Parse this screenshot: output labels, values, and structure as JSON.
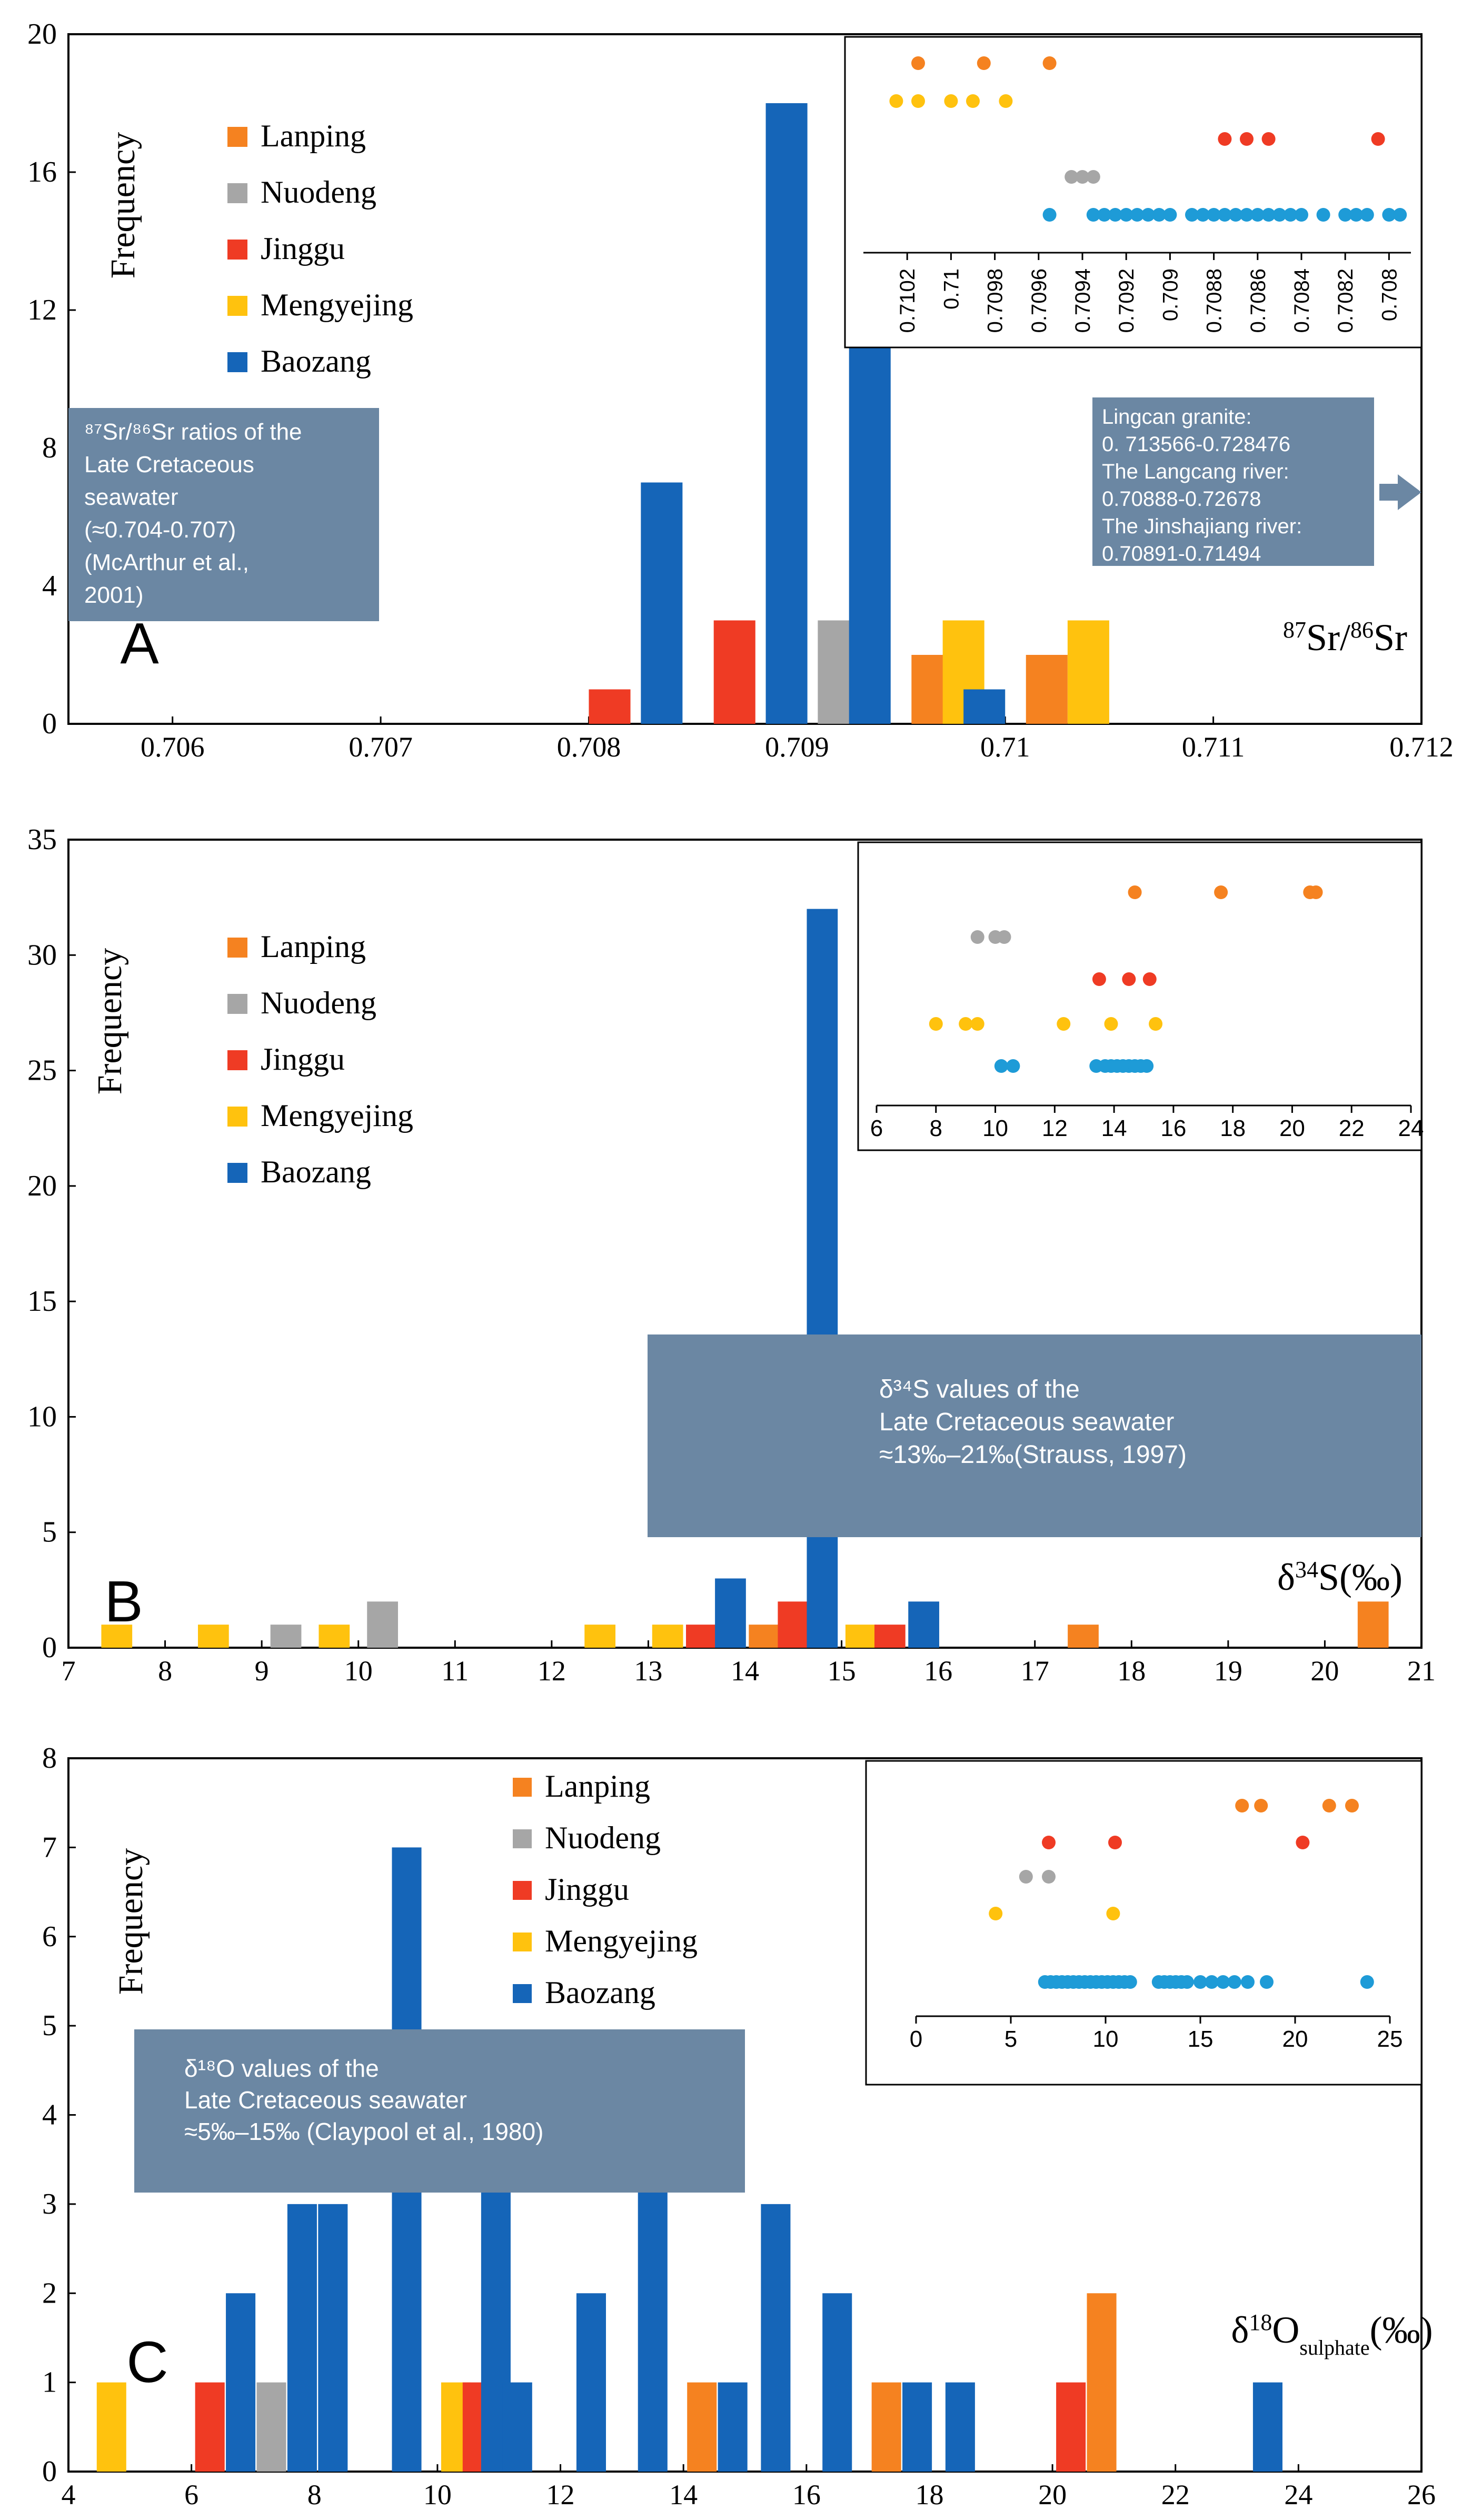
{
  "colors": {
    "Lanping": "#f58220",
    "Nuodeng": "#a6a6a6",
    "Jinggu": "#ef3b24",
    "Mengyejing": "#ffc20e",
    "Baozang": "#1565b8",
    "inset_baozang": "#1e9bd7",
    "callout": "#6b87a3",
    "callout_text": "#ffffff",
    "axis": "#000000"
  },
  "chart_data": [
    {
      "id": "A",
      "type": "bar",
      "panel_label": "A",
      "title": "",
      "ylabel": "Frequency",
      "xlabel_pre": "87",
      "xlabel_mid": "Sr/",
      "xlabel_sup2": "86",
      "xlabel_post": "Sr",
      "xlim": [
        0.7055,
        0.712
      ],
      "ylim": [
        0,
        20
      ],
      "xticks": [
        0.706,
        0.707,
        0.708,
        0.709,
        0.71,
        0.711,
        0.712
      ],
      "xtick_labels": [
        "0.706",
        "0.707",
        "0.708",
        "0.709",
        "0.71",
        "0.711",
        "0.712"
      ],
      "yticks": [
        0,
        4,
        8,
        12,
        16,
        20
      ],
      "bar_width": 0.0002,
      "legend": [
        "Lanping",
        "Nuodeng",
        "Jinggu",
        "Mengyejing",
        "Baozang"
      ],
      "bars": [
        {
          "series": "Jinggu",
          "x": 0.7081,
          "value": 1
        },
        {
          "series": "Baozang",
          "x": 0.70835,
          "value": 7
        },
        {
          "series": "Jinggu",
          "x": 0.7087,
          "value": 3
        },
        {
          "series": "Baozang",
          "x": 0.70895,
          "value": 18
        },
        {
          "series": "Nuodeng",
          "x": 0.7092,
          "value": 3
        },
        {
          "series": "Baozang",
          "x": 0.70935,
          "value": 11
        },
        {
          "series": "Lanping",
          "x": 0.70965,
          "value": 2
        },
        {
          "series": "Mengyejing",
          "x": 0.7098,
          "value": 3
        },
        {
          "series": "Baozang",
          "x": 0.7099,
          "value": 1
        },
        {
          "series": "Lanping",
          "x": 0.7102,
          "value": 2
        },
        {
          "series": "Mengyejing",
          "x": 0.70835,
          "value": 0
        },
        {
          "series": "Mengyejing",
          "x": 0.7104,
          "value": 3
        }
      ],
      "callouts": [
        {
          "lines": [
            "⁸⁷Sr/⁸⁶Sr ratios of the",
            "Late Cretaceous",
            "seawater",
            "(≈0.704-0.707)",
            "(McArthur et al.,",
            "2001)"
          ]
        },
        {
          "lines": [
            "Lingcan granite:",
            "0. 713566-0.728476",
            "The Langcang river:",
            "0.70888-0.72678",
            "The Jinshajiang river:",
            "0.70891-0.71494"
          ]
        }
      ],
      "inset": {
        "reversed": true,
        "xlim": [
          0.7104,
          0.7079
        ],
        "xticks": [
          0.7102,
          0.71,
          0.7098,
          0.7096,
          0.7094,
          0.7092,
          0.709,
          0.7088,
          0.7086,
          0.7084,
          0.7082,
          0.708
        ],
        "xtick_labels": [
          "0.7102",
          "0.71",
          "0.7098",
          "0.7096",
          "0.7094",
          "0.7092",
          "0.709",
          "0.7088",
          "0.7086",
          "0.7084",
          "0.7082",
          "0.708"
        ],
        "rows": [
          {
            "series": "Lanping",
            "x": [
              0.71015,
              0.70985,
              0.70955
            ]
          },
          {
            "series": "Mengyejing",
            "x": [
              0.71025,
              0.71015,
              0.71,
              0.7099,
              0.70975
            ]
          },
          {
            "series": "Jinggu",
            "x": [
              0.70875,
              0.70865,
              0.70855,
              0.70805
            ]
          },
          {
            "series": "Nuodeng",
            "x": [
              0.70945,
              0.7094,
              0.70935
            ]
          },
          {
            "series": "Baozang",
            "x": [
              0.70955,
              0.70935,
              0.7093,
              0.70925,
              0.7092,
              0.70915,
              0.7091,
              0.70905,
              0.709,
              0.70885,
              0.7088,
              0.7087,
              0.70865,
              0.7086,
              0.70855,
              0.7085,
              0.70845,
              0.7084,
              0.7083,
              0.7082,
              0.70815,
              0.7081,
              0.708,
              0.70795,
              0.7089,
              0.70875
            ]
          }
        ]
      }
    },
    {
      "id": "B",
      "type": "bar",
      "panel_label": "B",
      "title": "",
      "ylabel": "Frequency",
      "xlabel_pre": "δ",
      "xlabel_sup": "34",
      "xlabel_post": "S(‰)",
      "xlim": [
        7,
        21
      ],
      "ylim": [
        0,
        35
      ],
      "xticks": [
        7,
        8,
        9,
        10,
        11,
        12,
        13,
        14,
        15,
        16,
        17,
        18,
        19,
        20,
        21
      ],
      "xtick_labels": [
        "7",
        "8",
        "9",
        "10",
        "11",
        "12",
        "13",
        "14",
        "15",
        "16",
        "17",
        "18",
        "19",
        "20",
        "21"
      ],
      "yticks": [
        0,
        5,
        10,
        15,
        20,
        25,
        30,
        35
      ],
      "bar_width": 0.32,
      "legend": [
        "Lanping",
        "Nuodeng",
        "Jinggu",
        "Mengyejing",
        "Baozang"
      ],
      "bars": [
        {
          "series": "Mengyejing",
          "x": 7.5,
          "value": 1
        },
        {
          "series": "Mengyejing",
          "x": 8.5,
          "value": 1
        },
        {
          "series": "Nuodeng",
          "x": 9.25,
          "value": 1
        },
        {
          "series": "Mengyejing",
          "x": 9.75,
          "value": 1
        },
        {
          "series": "Nuodeng",
          "x": 10.25,
          "value": 2
        },
        {
          "series": "Mengyejing",
          "x": 12.5,
          "value": 1
        },
        {
          "series": "Mengyejing",
          "x": 13.2,
          "value": 1
        },
        {
          "series": "Jinggu",
          "x": 13.55,
          "value": 1
        },
        {
          "series": "Baozang",
          "x": 13.85,
          "value": 3
        },
        {
          "series": "Lanping",
          "x": 14.2,
          "value": 1
        },
        {
          "series": "Jinggu",
          "x": 14.5,
          "value": 2
        },
        {
          "series": "Baozang",
          "x": 14.8,
          "value": 32
        },
        {
          "series": "Mengyejing",
          "x": 15.2,
          "value": 1
        },
        {
          "series": "Jinggu",
          "x": 15.5,
          "value": 1
        },
        {
          "series": "Baozang",
          "x": 15.85,
          "value": 2
        },
        {
          "series": "Lanping",
          "x": 17.5,
          "value": 1
        },
        {
          "series": "Lanping",
          "x": 20.5,
          "value": 2
        }
      ],
      "callouts": [
        {
          "lines": [
            "δ³⁴S values of the",
            "Late Cretaceous seawater",
            "≈13‰–21‰(Strauss, 1997)"
          ]
        }
      ],
      "inset": {
        "reversed": false,
        "xlim": [
          6,
          24
        ],
        "xticks": [
          6,
          8,
          10,
          12,
          14,
          16,
          18,
          20,
          22,
          24
        ],
        "xtick_labels": [
          "6",
          "8",
          "10",
          "12",
          "14",
          "16",
          "18",
          "20",
          "22",
          "24"
        ],
        "rows": [
          {
            "series": "Lanping",
            "x": [
              14.7,
              17.6,
              20.6,
              20.8
            ]
          },
          {
            "series": "Nuodeng",
            "x": [
              9.4,
              10.0,
              10.3
            ]
          },
          {
            "series": "Jinggu",
            "x": [
              13.5,
              14.5,
              15.2
            ]
          },
          {
            "series": "Mengyejing",
            "x": [
              8.0,
              9.0,
              9.4,
              12.3,
              13.9,
              15.4
            ]
          },
          {
            "series": "Baozang",
            "x": [
              10.2,
              10.6,
              13.4,
              13.7,
              13.9,
              14.1,
              14.3,
              14.5,
              14.7,
              14.9,
              15.1
            ]
          }
        ]
      }
    },
    {
      "id": "C",
      "type": "bar",
      "panel_label": "C",
      "title": "",
      "ylabel": "Frequency",
      "xlabel_pre": "δ",
      "xlabel_sup": "18",
      "xlabel_mid": "O",
      "xlabel_sub": "sulphate",
      "xlabel_post": "(‰)",
      "xlim": [
        4,
        26
      ],
      "ylim": [
        0,
        8
      ],
      "xticks": [
        4,
        6,
        8,
        10,
        12,
        14,
        16,
        18,
        20,
        22,
        24,
        26
      ],
      "xtick_labels": [
        "4",
        "6",
        "8",
        "10",
        "12",
        "14",
        "16",
        "18",
        "20",
        "22",
        "24",
        "26"
      ],
      "yticks": [
        0,
        1,
        2,
        3,
        4,
        5,
        6,
        7,
        8
      ],
      "bar_width": 0.48,
      "legend": [
        "Lanping",
        "Nuodeng",
        "Jinggu",
        "Mengyejing",
        "Baozang"
      ],
      "bars": [
        {
          "series": "Mengyejing",
          "x": 4.7,
          "value": 1
        },
        {
          "series": "Jinggu",
          "x": 6.3,
          "value": 1
        },
        {
          "series": "Baozang",
          "x": 6.8,
          "value": 2
        },
        {
          "series": "Nuodeng",
          "x": 7.3,
          "value": 1
        },
        {
          "series": "Baozang",
          "x": 7.8,
          "value": 3
        },
        {
          "series": "Baozang",
          "x": 8.3,
          "value": 3
        },
        {
          "series": "Baozang",
          "x": 9.5,
          "value": 7
        },
        {
          "series": "Mengyejing",
          "x": 10.3,
          "value": 1
        },
        {
          "series": "Jinggu",
          "x": 10.65,
          "value": 1
        },
        {
          "series": "Baozang",
          "x": 10.95,
          "value": 4
        },
        {
          "series": "Baozang",
          "x": 11.3,
          "value": 1
        },
        {
          "series": "Baozang",
          "x": 12.5,
          "value": 2
        },
        {
          "series": "Baozang",
          "x": 13.5,
          "value": 4
        },
        {
          "series": "Lanping",
          "x": 14.3,
          "value": 1
        },
        {
          "series": "Baozang",
          "x": 14.8,
          "value": 1
        },
        {
          "series": "Baozang",
          "x": 15.5,
          "value": 3
        },
        {
          "series": "Baozang",
          "x": 16.5,
          "value": 2
        },
        {
          "series": "Lanping",
          "x": 17.3,
          "value": 1
        },
        {
          "series": "Baozang",
          "x": 17.8,
          "value": 1
        },
        {
          "series": "Baozang",
          "x": 18.5,
          "value": 1
        },
        {
          "series": "Jinggu",
          "x": 20.3,
          "value": 1
        },
        {
          "series": "Lanping",
          "x": 20.8,
          "value": 2
        },
        {
          "series": "Baozang",
          "x": 23.5,
          "value": 1
        }
      ],
      "callouts": [
        {
          "lines": [
            "δ¹⁸O values of the",
            "Late Cretaceous seawater",
            "≈5‰–15‰ (Claypool et al., 1980)"
          ]
        }
      ],
      "inset": {
        "reversed": false,
        "xlim": [
          0,
          25
        ],
        "xticks": [
          0,
          5,
          10,
          15,
          20,
          25
        ],
        "xtick_labels": [
          "0",
          "5",
          "10",
          "15",
          "20",
          "25"
        ],
        "rows": [
          {
            "series": "Lanping",
            "x": [
              17.2,
              18.2,
              21.8,
              23.0
            ]
          },
          {
            "series": "Jinggu",
            "x": [
              7.0,
              10.5,
              20.4
            ]
          },
          {
            "series": "Nuodeng",
            "x": [
              5.8,
              7.0
            ]
          },
          {
            "series": "Mengyejing",
            "x": [
              4.2,
              10.4
            ]
          },
          {
            "series": "Baozang",
            "x": [
              6.8,
              7.1,
              7.4,
              7.7,
              8.0,
              8.3,
              8.6,
              8.9,
              9.2,
              9.5,
              9.8,
              10.1,
              10.4,
              10.7,
              11.0,
              11.3,
              12.8,
              13.1,
              13.4,
              13.7,
              14.0,
              14.3,
              15.0,
              15.6,
              16.2,
              16.8,
              17.5,
              18.5,
              23.8
            ]
          }
        ]
      }
    }
  ]
}
